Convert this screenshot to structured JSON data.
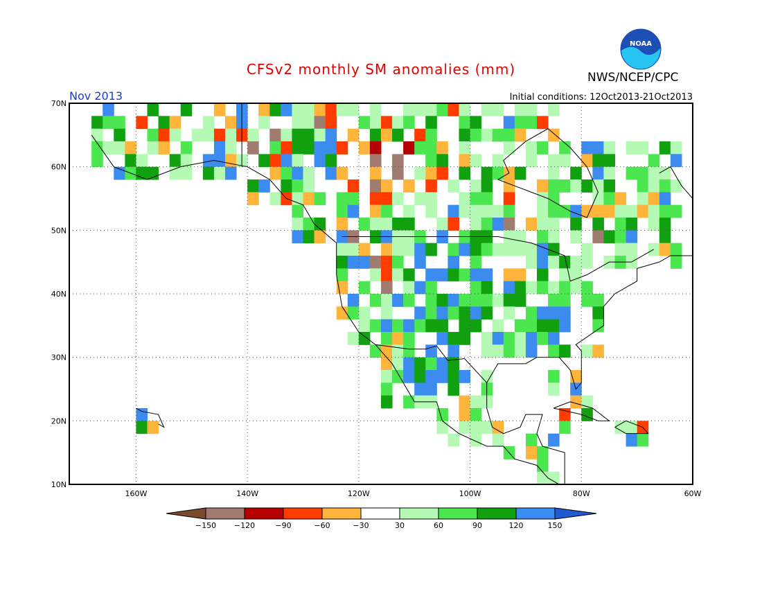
{
  "title": "CFSv2 monthly SM anomalies (mm)",
  "agency": "NWS/NCEP/CPC",
  "logo_text": "NOAA",
  "month": "Nov 2013",
  "initial_conditions": "Initial conditions: 12Oct2013-21Oct2013",
  "map": {
    "lon_range": [
      -172,
      -60
    ],
    "lat_range": [
      10,
      70
    ],
    "lon_ticks": [
      "160W",
      "140W",
      "120W",
      "100W",
      "80W",
      "60W"
    ],
    "lat_ticks": [
      "10N",
      "20N",
      "30N",
      "40N",
      "50N",
      "60N",
      "70N"
    ],
    "grid": "dotted"
  },
  "legend": {
    "values": [
      "−150",
      "−120",
      "−90",
      "−60",
      "−30",
      "30",
      "60",
      "90",
      "120",
      "150"
    ],
    "colors": [
      "#7b4a2c",
      "#a07c70",
      "#b40000",
      "#ff3c00",
      "#ffb43c",
      "#ffffff",
      "#b4fab4",
      "#4ce650",
      "#10a010",
      "#3c8cf0",
      "#1e5ad2"
    ]
  },
  "colors": {
    "title": "#e00000",
    "month": "#1a3cd0",
    "frame": "#000000"
  }
}
